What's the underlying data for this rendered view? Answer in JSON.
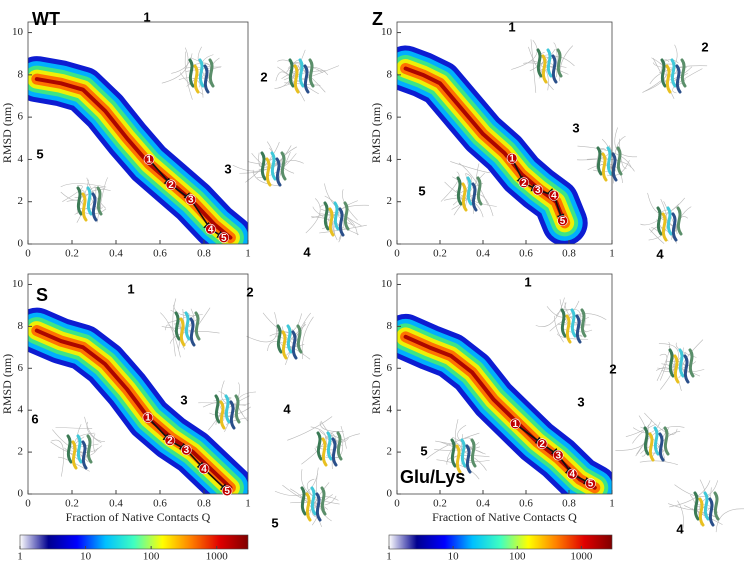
{
  "chart_data": [
    {
      "type": "heatmap",
      "title": "WT",
      "ylabel": "RMSD (nm)",
      "xlim": [
        0,
        1
      ],
      "xticks": [
        0,
        0.2,
        0.4,
        0.6,
        0.8,
        1
      ],
      "ylim": [
        0,
        10.5
      ],
      "yticks": [
        0,
        2,
        4,
        6,
        8,
        10
      ],
      "ridge": {
        "x": [
          0.04,
          0.15,
          0.25,
          0.35,
          0.45,
          0.55,
          0.65,
          0.75,
          0.85,
          0.92
        ],
        "y": [
          7.8,
          7.6,
          7.3,
          6.3,
          5.0,
          3.8,
          2.9,
          2.0,
          0.9,
          0.3
        ]
      },
      "pathway": {
        "labels": [
          "1",
          "2",
          "3",
          "4",
          "5"
        ],
        "x": [
          0.55,
          0.65,
          0.74,
          0.83,
          0.89
        ],
        "y": [
          4.0,
          2.8,
          2.1,
          0.7,
          0.3
        ]
      },
      "structures": [
        "1",
        "2",
        "3",
        "4",
        "5"
      ]
    },
    {
      "type": "heatmap",
      "title": "Z",
      "ylabel": "RMSD (nm)",
      "xlim": [
        0,
        1
      ],
      "xticks": [
        0,
        0.2,
        0.4,
        0.6,
        0.8,
        1
      ],
      "ylim": [
        0,
        10.5
      ],
      "yticks": [
        0,
        2,
        4,
        6,
        8,
        10
      ],
      "ridge": {
        "x": [
          0.04,
          0.12,
          0.2,
          0.3,
          0.4,
          0.5,
          0.58,
          0.66,
          0.74,
          0.78
        ],
        "y": [
          8.3,
          8.0,
          7.6,
          6.4,
          5.2,
          4.3,
          3.3,
          2.6,
          2.0,
          1.0
        ]
      },
      "pathway": {
        "labels": [
          "1",
          "2",
          "3",
          "4",
          "5"
        ],
        "x": [
          0.535,
          0.59,
          0.655,
          0.73,
          0.77
        ],
        "y": [
          4.05,
          2.9,
          2.55,
          2.3,
          1.1
        ]
      },
      "structures": [
        "1",
        "2",
        "3",
        "4",
        "5"
      ]
    },
    {
      "type": "heatmap",
      "title": "S",
      "ylabel": "RMSD (nm)",
      "xlabel": "Fraction of Native Contacts Q",
      "xlim": [
        0,
        1
      ],
      "xticks": [
        0,
        0.2,
        0.4,
        0.6,
        0.8,
        1
      ],
      "ylim": [
        0,
        10.5
      ],
      "yticks": [
        0,
        2,
        4,
        6,
        8,
        10
      ],
      "ridge": {
        "x": [
          0.04,
          0.15,
          0.25,
          0.35,
          0.45,
          0.55,
          0.65,
          0.75,
          0.85,
          0.92
        ],
        "y": [
          7.8,
          7.3,
          7.0,
          6.2,
          5.0,
          3.6,
          2.7,
          2.0,
          1.0,
          0.3
        ]
      },
      "pathway": {
        "labels": [
          "1",
          "2",
          "3",
          "4",
          "5"
        ],
        "x": [
          0.545,
          0.645,
          0.72,
          0.8,
          0.905
        ],
        "y": [
          3.65,
          2.55,
          2.1,
          1.2,
          0.15
        ]
      },
      "structures": [
        "1",
        "2",
        "3",
        "4",
        "5",
        "6"
      ],
      "colorbar": {
        "scale": "log",
        "lim": [
          1,
          3000
        ],
        "ticks": [
          1,
          10,
          100,
          1000
        ],
        "colors": [
          "#ffffff",
          "#00008f",
          "#0000ff",
          "#00c0ff",
          "#40ffc0",
          "#ffff00",
          "#ff8000",
          "#e00000",
          "#800000"
        ]
      }
    },
    {
      "type": "heatmap",
      "title": "Glu/Lys",
      "ylabel": "RMSD (nm)",
      "xlabel": "Fraction of Native Contacts Q",
      "xlim": [
        0,
        1
      ],
      "xticks": [
        0,
        0.2,
        0.4,
        0.6,
        0.8,
        1
      ],
      "ylim": [
        0,
        10.5
      ],
      "yticks": [
        0,
        2,
        4,
        6,
        8,
        10
      ],
      "ridge": {
        "x": [
          0.04,
          0.15,
          0.25,
          0.35,
          0.45,
          0.55,
          0.65,
          0.75,
          0.85,
          0.92
        ],
        "y": [
          7.5,
          7.0,
          6.6,
          5.8,
          4.5,
          3.5,
          2.5,
          1.7,
          0.7,
          0.3
        ]
      },
      "pathway": {
        "labels": [
          "1",
          "2",
          "3",
          "4",
          "5"
        ],
        "x": [
          0.55,
          0.675,
          0.75,
          0.815,
          0.9
        ],
        "y": [
          3.35,
          2.4,
          1.85,
          0.95,
          0.5
        ]
      },
      "structures": [
        "1",
        "2",
        "3",
        "4",
        "5"
      ],
      "colorbar": {
        "scale": "log",
        "lim": [
          1,
          3000
        ],
        "ticks": [
          1,
          10,
          100,
          1000
        ],
        "colors": [
          "#ffffff",
          "#00008f",
          "#0000ff",
          "#00c0ff",
          "#40ffc0",
          "#ffff00",
          "#ff8000",
          "#e00000",
          "#800000"
        ]
      }
    }
  ]
}
